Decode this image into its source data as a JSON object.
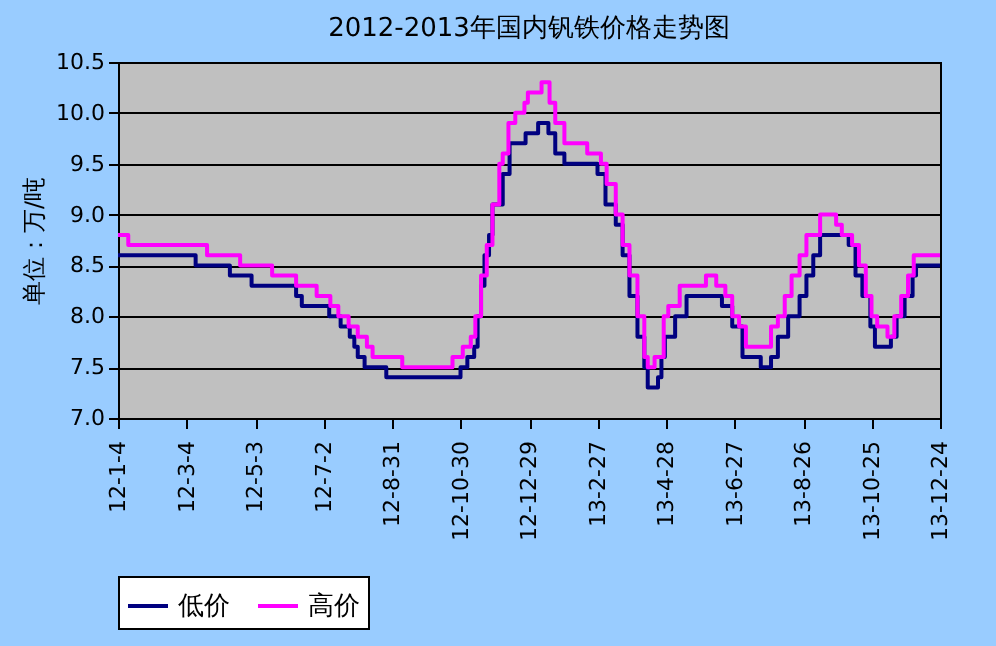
{
  "chart_data": {
    "type": "step",
    "title": "2012-2013年国内钒铁价格走势图",
    "ylabel": "单位：万/吨",
    "ylim": [
      7.0,
      10.5
    ],
    "yticks": [
      {
        "value": 7.0,
        "label": "7.0"
      },
      {
        "value": 7.5,
        "label": "7.5"
      },
      {
        "value": 8.0,
        "label": "8.0"
      },
      {
        "value": 8.5,
        "label": "8.5"
      },
      {
        "value": 9.0,
        "label": "9.0"
      },
      {
        "value": 9.5,
        "label": "9.5"
      },
      {
        "value": 10.0,
        "label": "10.0"
      },
      {
        "value": 10.5,
        "label": "10.5"
      }
    ],
    "xlim": [
      "2012-01-04",
      "2013-12-24"
    ],
    "xticks": [
      {
        "value": "2012-01-04",
        "label": "12-1-4"
      },
      {
        "value": "2012-03-04",
        "label": "12-3-4"
      },
      {
        "value": "2012-05-03",
        "label": "12-5-3"
      },
      {
        "value": "2012-07-02",
        "label": "12-7-2"
      },
      {
        "value": "2012-08-31",
        "label": "12-8-31"
      },
      {
        "value": "2012-10-30",
        "label": "12-10-30"
      },
      {
        "value": "2012-12-29",
        "label": "12-12-29"
      },
      {
        "value": "2013-02-27",
        "label": "13-2-27"
      },
      {
        "value": "2013-04-28",
        "label": "13-4-28"
      },
      {
        "value": "2013-06-27",
        "label": "13-6-27"
      },
      {
        "value": "2013-08-26",
        "label": "13-8-26"
      },
      {
        "value": "2013-10-25",
        "label": "13-10-25"
      },
      {
        "value": "2013-12-24",
        "label": "13-12-24"
      }
    ],
    "grid": "y",
    "legend": "bottom",
    "line_style": "solid",
    "series": [
      {
        "name": "低价",
        "color": "#000080",
        "x": [
          "2012-01-04",
          "2012-03-12",
          "2012-04-11",
          "2012-04-30",
          "2012-06-08",
          "2012-06-13",
          "2012-07-07",
          "2012-07-17",
          "2012-07-25",
          "2012-07-29",
          "2012-08-01",
          "2012-08-07",
          "2012-08-26",
          "2012-10-30",
          "2012-11-05",
          "2012-11-11",
          "2012-11-14",
          "2012-11-17",
          "2012-11-20",
          "2012-11-24",
          "2012-11-27",
          "2012-12-06",
          "2012-12-12",
          "2012-12-26",
          "2013-01-06",
          "2013-01-15",
          "2013-01-21",
          "2013-01-29",
          "2013-02-27",
          "2013-03-06",
          "2013-03-15",
          "2013-03-21",
          "2013-03-27",
          "2013-04-03",
          "2013-04-09",
          "2013-04-12",
          "2013-04-21",
          "2013-04-24",
          "2013-04-27",
          "2013-05-06",
          "2013-05-16",
          "2013-06-16",
          "2013-06-25",
          "2013-07-04",
          "2013-07-20",
          "2013-07-29",
          "2013-08-04",
          "2013-08-13",
          "2013-08-23",
          "2013-08-29",
          "2013-09-04",
          "2013-09-10",
          "2013-10-05",
          "2013-10-11",
          "2013-10-17",
          "2013-10-24",
          "2013-10-28",
          "2013-11-11",
          "2013-11-16",
          "2013-11-23",
          "2013-11-30",
          "2013-12-03",
          "2013-12-24"
        ],
        "values": [
          8.6,
          8.5,
          8.4,
          8.3,
          8.2,
          8.1,
          8.0,
          7.9,
          7.8,
          7.7,
          7.6,
          7.5,
          7.4,
          7.5,
          7.6,
          7.7,
          8.0,
          8.3,
          8.6,
          8.8,
          9.1,
          9.4,
          9.7,
          9.8,
          9.9,
          9.8,
          9.6,
          9.5,
          9.4,
          9.1,
          8.9,
          8.6,
          8.2,
          7.8,
          7.5,
          7.3,
          7.4,
          7.6,
          7.8,
          8.0,
          8.2,
          8.1,
          7.9,
          7.6,
          7.5,
          7.6,
          7.8,
          8.0,
          8.2,
          8.4,
          8.6,
          8.8,
          8.7,
          8.4,
          8.2,
          7.9,
          7.7,
          7.8,
          8.0,
          8.2,
          8.4,
          8.5,
          8.5
        ]
      },
      {
        "name": "高价",
        "color": "#ff00ff",
        "x": [
          "2012-01-04",
          "2012-01-13",
          "2012-03-22",
          "2012-04-20",
          "2012-05-18",
          "2012-06-08",
          "2012-06-26",
          "2012-07-08",
          "2012-07-15",
          "2012-07-24",
          "2012-08-01",
          "2012-08-09",
          "2012-08-14",
          "2012-09-09",
          "2012-10-23",
          "2012-11-01",
          "2012-11-08",
          "2012-11-12",
          "2012-11-17",
          "2012-11-22",
          "2012-11-27",
          "2012-12-03",
          "2012-12-06",
          "2012-12-11",
          "2012-12-17",
          "2012-12-25",
          "2012-12-28",
          "2013-01-09",
          "2013-01-16",
          "2013-01-21",
          "2013-01-29",
          "2013-02-18",
          "2013-03-02",
          "2013-03-07",
          "2013-03-15",
          "2013-03-21",
          "2013-03-27",
          "2013-04-03",
          "2013-04-09",
          "2013-04-12",
          "2013-04-18",
          "2013-04-26",
          "2013-04-30",
          "2013-05-10",
          "2013-06-02",
          "2013-06-11",
          "2013-06-19",
          "2013-06-25",
          "2013-07-01",
          "2013-07-07",
          "2013-07-29",
          "2013-08-04",
          "2013-08-10",
          "2013-08-16",
          "2013-08-23",
          "2013-08-29",
          "2013-09-10",
          "2013-09-24",
          "2013-09-29",
          "2013-10-08",
          "2013-10-14",
          "2013-10-20",
          "2013-10-25",
          "2013-10-30",
          "2013-11-08",
          "2013-11-14",
          "2013-11-20",
          "2013-11-26",
          "2013-12-01",
          "2013-12-24"
        ],
        "values": [
          8.8,
          8.7,
          8.6,
          8.5,
          8.4,
          8.3,
          8.2,
          8.1,
          8.0,
          7.9,
          7.8,
          7.7,
          7.6,
          7.5,
          7.6,
          7.7,
          7.8,
          8.0,
          8.4,
          8.7,
          9.1,
          9.5,
          9.6,
          9.9,
          10.0,
          10.1,
          10.2,
          10.3,
          10.1,
          9.9,
          9.7,
          9.6,
          9.5,
          9.3,
          9.0,
          8.7,
          8.4,
          8.0,
          7.6,
          7.5,
          7.6,
          8.0,
          8.1,
          8.3,
          8.4,
          8.3,
          8.2,
          8.0,
          7.9,
          7.7,
          7.9,
          8.0,
          8.2,
          8.4,
          8.6,
          8.8,
          9.0,
          8.9,
          8.8,
          8.7,
          8.5,
          8.2,
          8.0,
          7.9,
          7.8,
          8.0,
          8.2,
          8.4,
          8.6,
          8.6
        ]
      }
    ]
  }
}
